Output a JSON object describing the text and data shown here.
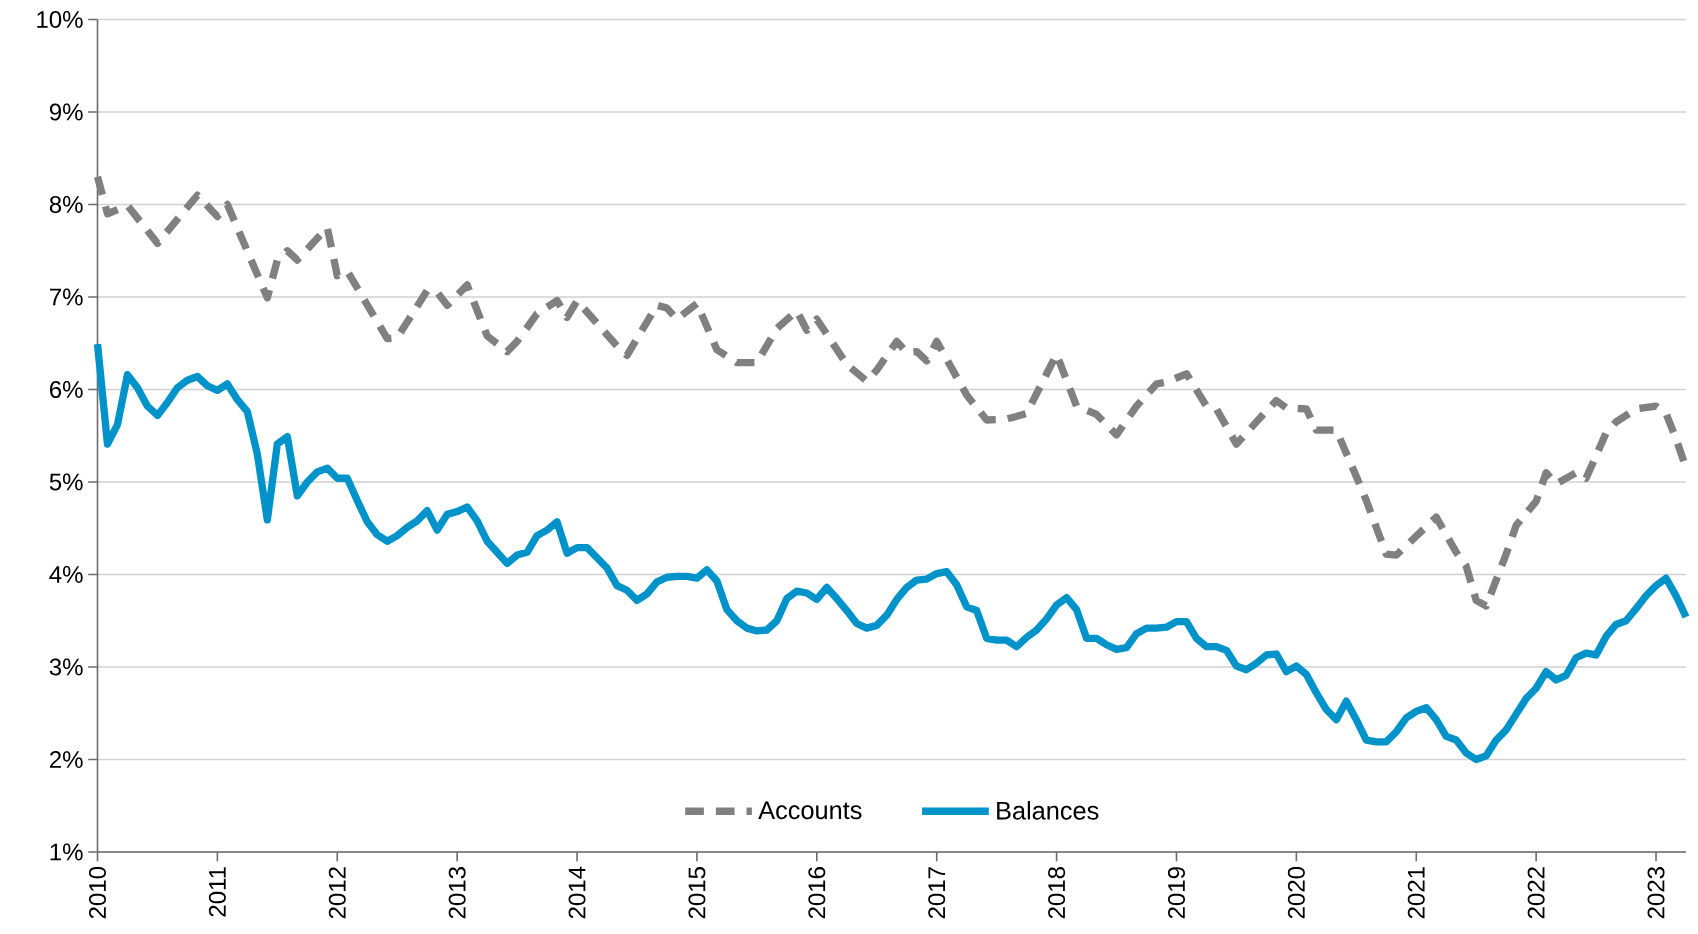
{
  "chart_data": {
    "type": "line",
    "xlim": [
      "2010-01",
      "2023-04"
    ],
    "xticks": [
      "2010",
      "2011",
      "2012",
      "2013",
      "2014",
      "2015",
      "2016",
      "2017",
      "2018",
      "2019",
      "2020",
      "2021",
      "2022",
      "2023"
    ],
    "ylim": [
      1,
      10
    ],
    "yticks": [
      {
        "value": 1,
        "label": "1%"
      },
      {
        "value": 2,
        "label": "2%"
      },
      {
        "value": 3,
        "label": "3%"
      },
      {
        "value": 4,
        "label": "4%"
      },
      {
        "value": 5,
        "label": "5%"
      },
      {
        "value": 6,
        "label": "6%"
      },
      {
        "value": 7,
        "label": "7%"
      },
      {
        "value": 8,
        "label": "8%"
      },
      {
        "value": 9,
        "label": "9%"
      },
      {
        "value": 10,
        "label": "10%"
      }
    ],
    "grid": "y",
    "legend": "bottom",
    "series": [
      {
        "name": "Accounts",
        "color": "#808080",
        "line_style": "dashed",
        "x": [
          "2010-01",
          "2010-02",
          "2010-04",
          "2010-07",
          "2010-11",
          "2011-01",
          "2011-02",
          "2011-06",
          "2011-07",
          "2011-08",
          "2011-09",
          "2011-12",
          "2012-01",
          "2012-02",
          "2012-06",
          "2012-07",
          "2012-10",
          "2012-11",
          "2012-12",
          "2013-02",
          "2013-04",
          "2013-06",
          "2013-07",
          "2013-09",
          "2013-11",
          "2013-12",
          "2014-01",
          "2014-05",
          "2014-06",
          "2014-09",
          "2014-10",
          "2014-11",
          "2015-01",
          "2015-03",
          "2015-05",
          "2015-07",
          "2015-09",
          "2015-11",
          "2015-12",
          "2016-01",
          "2016-04",
          "2016-06",
          "2016-07",
          "2016-09",
          "2016-10",
          "2016-11",
          "2016-12",
          "2017-01",
          "2017-04",
          "2017-06",
          "2017-08",
          "2017-10",
          "2017-12",
          "2018-01",
          "2018-03",
          "2018-05",
          "2018-07",
          "2018-09",
          "2018-11",
          "2018-12",
          "2019-02",
          "2019-04",
          "2019-05",
          "2019-07",
          "2019-09",
          "2019-11",
          "2019-12",
          "2020-02",
          "2020-03",
          "2020-05",
          "2020-07",
          "2020-08",
          "2020-10",
          "2020-11",
          "2021-03",
          "2021-05",
          "2021-06",
          "2021-07",
          "2021-08",
          "2021-10",
          "2021-11",
          "2022-01",
          "2022-02",
          "2022-03",
          "2022-05",
          "2022-06",
          "2022-08",
          "2022-09",
          "2022-11",
          "2023-01",
          "2023-02",
          "2023-03",
          "2023-04"
        ],
        "values": [
          8.3,
          7.9,
          7.99,
          7.58,
          8.1,
          7.87,
          8.0,
          6.99,
          7.4,
          7.5,
          7.4,
          7.75,
          7.23,
          7.28,
          6.55,
          6.56,
          7.07,
          7.05,
          6.91,
          7.13,
          6.58,
          6.41,
          6.52,
          6.82,
          6.96,
          6.78,
          6.96,
          6.47,
          6.37,
          6.91,
          6.88,
          6.76,
          6.93,
          6.43,
          6.29,
          6.29,
          6.66,
          6.85,
          6.64,
          6.76,
          6.27,
          6.09,
          6.21,
          6.52,
          6.4,
          6.41,
          6.31,
          6.52,
          5.94,
          5.67,
          5.68,
          5.74,
          6.17,
          6.38,
          5.82,
          5.73,
          5.51,
          5.82,
          6.06,
          6.08,
          6.17,
          5.82,
          5.79,
          5.41,
          5.65,
          5.88,
          5.8,
          5.79,
          5.56,
          5.56,
          5.06,
          4.8,
          4.22,
          4.21,
          4.62,
          4.24,
          4.09,
          3.72,
          3.66,
          4.22,
          4.53,
          4.79,
          5.1,
          4.98,
          5.1,
          5.04,
          5.53,
          5.65,
          5.79,
          5.82,
          5.74,
          5.47,
          5.15
        ]
      },
      {
        "name": "Balances",
        "color": "#0093c9",
        "line_style": "solid",
        "x": [
          "2010-01",
          "2010-02",
          "2010-03",
          "2010-04",
          "2010-05",
          "2010-06",
          "2010-07",
          "2010-08",
          "2010-09",
          "2010-10",
          "2010-11",
          "2010-12",
          "2011-01",
          "2011-02",
          "2011-03",
          "2011-04",
          "2011-05",
          "2011-06",
          "2011-07",
          "2011-08",
          "2011-09",
          "2011-10",
          "2011-11",
          "2011-12",
          "2012-01",
          "2012-02",
          "2012-03",
          "2012-04",
          "2012-05",
          "2012-06",
          "2012-07",
          "2012-08",
          "2012-09",
          "2012-10",
          "2012-11",
          "2012-12",
          "2013-01",
          "2013-02",
          "2013-03",
          "2013-04",
          "2013-05",
          "2013-06",
          "2013-07",
          "2013-08",
          "2013-09",
          "2013-10",
          "2013-11",
          "2013-12",
          "2014-01",
          "2014-02",
          "2014-03",
          "2014-04",
          "2014-05",
          "2014-06",
          "2014-07",
          "2014-08",
          "2014-09",
          "2014-10",
          "2014-11",
          "2014-12",
          "2015-01",
          "2015-02",
          "2015-03",
          "2015-04",
          "2015-05",
          "2015-06",
          "2015-07",
          "2015-08",
          "2015-09",
          "2015-10",
          "2015-11",
          "2015-12",
          "2016-01",
          "2016-02",
          "2016-03",
          "2016-04",
          "2016-05",
          "2016-06",
          "2016-07",
          "2016-08",
          "2016-09",
          "2016-10",
          "2016-11",
          "2016-12",
          "2017-01",
          "2017-02",
          "2017-03",
          "2017-04",
          "2017-05",
          "2017-06",
          "2017-07",
          "2017-08",
          "2017-09",
          "2017-10",
          "2017-11",
          "2017-12",
          "2018-01",
          "2018-02",
          "2018-03",
          "2018-04",
          "2018-05",
          "2018-06",
          "2018-07",
          "2018-08",
          "2018-09",
          "2018-10",
          "2018-11",
          "2018-12",
          "2019-01",
          "2019-02",
          "2019-03",
          "2019-04",
          "2019-05",
          "2019-06",
          "2019-07",
          "2019-08",
          "2019-09",
          "2019-10",
          "2019-11",
          "2019-12",
          "2020-01",
          "2020-02",
          "2020-03",
          "2020-04",
          "2020-05",
          "2020-06",
          "2020-07",
          "2020-08",
          "2020-09",
          "2020-10",
          "2020-11",
          "2020-12",
          "2021-01",
          "2021-02",
          "2021-03",
          "2021-04",
          "2021-05",
          "2021-06",
          "2021-07",
          "2021-08",
          "2021-09",
          "2021-10",
          "2021-11",
          "2021-12",
          "2022-01",
          "2022-02",
          "2022-03",
          "2022-04",
          "2022-05",
          "2022-06",
          "2022-07",
          "2022-08",
          "2022-09",
          "2022-10",
          "2022-11",
          "2022-12",
          "2023-01",
          "2023-02",
          "2023-03",
          "2023-04"
        ],
        "values": [
          6.49,
          5.41,
          5.62,
          6.16,
          6.02,
          5.82,
          5.72,
          5.86,
          6.02,
          6.1,
          6.14,
          6.04,
          5.99,
          6.06,
          5.89,
          5.76,
          5.3,
          4.59,
          5.41,
          5.49,
          4.85,
          5.0,
          5.11,
          5.15,
          5.04,
          5.04,
          4.8,
          4.57,
          4.43,
          4.36,
          4.42,
          4.51,
          4.58,
          4.69,
          4.48,
          4.65,
          4.68,
          4.73,
          4.58,
          4.36,
          4.24,
          4.12,
          4.21,
          4.24,
          4.42,
          4.48,
          4.57,
          4.23,
          4.29,
          4.29,
          4.18,
          4.07,
          3.88,
          3.83,
          3.72,
          3.79,
          3.92,
          3.97,
          3.98,
          3.98,
          3.96,
          4.05,
          3.93,
          3.62,
          3.5,
          3.42,
          3.39,
          3.4,
          3.5,
          3.74,
          3.82,
          3.8,
          3.73,
          3.86,
          3.74,
          3.61,
          3.47,
          3.42,
          3.45,
          3.56,
          3.73,
          3.86,
          3.94,
          3.95,
          4.01,
          4.03,
          3.89,
          3.65,
          3.61,
          3.31,
          3.29,
          3.29,
          3.22,
          3.32,
          3.4,
          3.52,
          3.67,
          3.75,
          3.62,
          3.31,
          3.31,
          3.24,
          3.19,
          3.21,
          3.36,
          3.42,
          3.42,
          3.43,
          3.49,
          3.49,
          3.31,
          3.22,
          3.22,
          3.18,
          3.01,
          2.97,
          3.04,
          3.13,
          3.14,
          2.95,
          3.01,
          2.92,
          2.72,
          2.54,
          2.43,
          2.63,
          2.43,
          2.21,
          2.19,
          2.19,
          2.3,
          2.45,
          2.52,
          2.56,
          2.43,
          2.25,
          2.21,
          2.07,
          2.0,
          2.04,
          2.21,
          2.32,
          2.49,
          2.66,
          2.77,
          2.95,
          2.86,
          2.91,
          3.1,
          3.15,
          3.13,
          3.33,
          3.46,
          3.5,
          3.63,
          3.77,
          3.88,
          3.96,
          3.77,
          3.54
        ]
      }
    ]
  }
}
